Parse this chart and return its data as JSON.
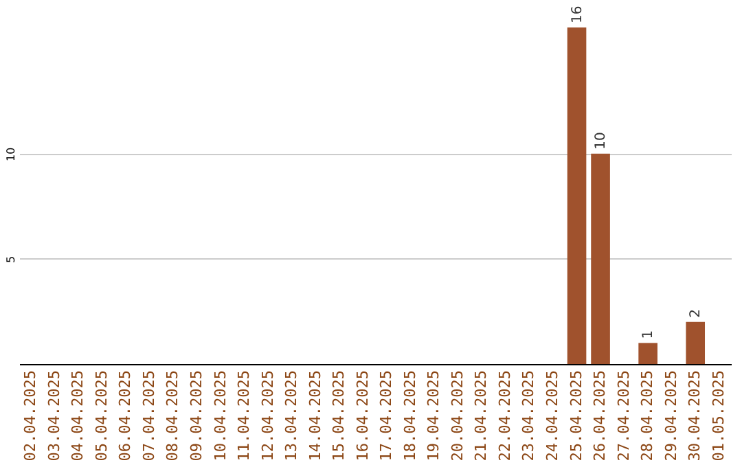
{
  "chart_data": {
    "type": "bar",
    "categories": [
      "02.04.2025",
      "03.04.2025",
      "04.04.2025",
      "05.04.2025",
      "06.04.2025",
      "07.04.2025",
      "08.04.2025",
      "09.04.2025",
      "10.04.2025",
      "11.04.2025",
      "12.04.2025",
      "13.04.2025",
      "14.04.2025",
      "15.04.2025",
      "16.04.2025",
      "17.04.2025",
      "18.04.2025",
      "19.04.2025",
      "20.04.2025",
      "21.04.2025",
      "22.04.2025",
      "23.04.2025",
      "24.04.2025",
      "25.04.2025",
      "26.04.2025",
      "27.04.2025",
      "28.04.2025",
      "29.04.2025",
      "30.04.2025",
      "01.05.2025"
    ],
    "values": [
      0,
      0,
      0,
      0,
      0,
      0,
      0,
      0,
      0,
      0,
      0,
      0,
      0,
      0,
      0,
      0,
      0,
      0,
      0,
      0,
      0,
      0,
      0,
      16,
      10,
      0,
      1,
      0,
      2,
      0
    ],
    "value_labels": [
      null,
      null,
      null,
      null,
      null,
      null,
      null,
      null,
      null,
      null,
      null,
      null,
      null,
      null,
      null,
      null,
      null,
      null,
      null,
      null,
      null,
      null,
      null,
      "16",
      "10",
      null,
      "1",
      null,
      "2",
      null
    ],
    "color": "#a0522d",
    "ylim": [
      0,
      16
    ],
    "yticks": [
      5,
      10
    ],
    "grid": "y"
  }
}
